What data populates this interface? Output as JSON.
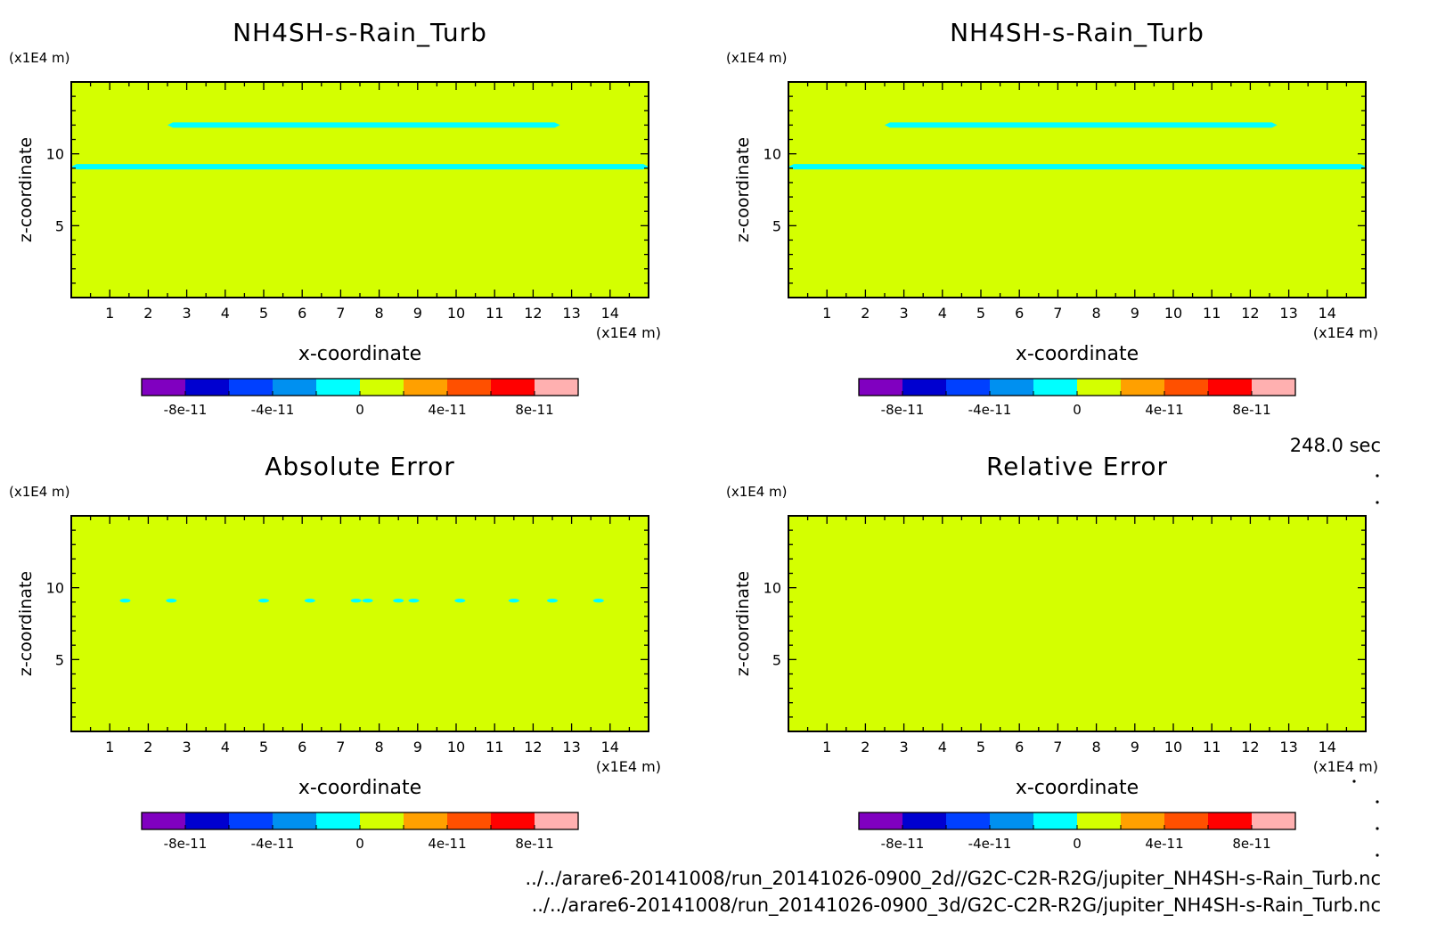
{
  "time_label": "248.0 sec",
  "files": [
    "../../arare6-20141008/run_20141026-0900_2d//G2C-C2R-R2G/jupiter_NH4SH-s-Rain_Turb.nc",
    "../../arare6-20141008/run_20141026-0900_3d/G2C-C2R-R2G/jupiter_NH4SH-s-Rain_Turb.nc"
  ],
  "colors": {
    "background_field": "#d4ff00",
    "contour_feature": "#00ffff",
    "colorbar": [
      "#8000c0",
      "#0000d0",
      "#0040ff",
      "#0090f0",
      "#00ffff",
      "#d4ff00",
      "#ffa000",
      "#ff5000",
      "#ff0000",
      "#ffb0b0"
    ]
  },
  "colorbar_ticks": [
    "-8e-11",
    "-4e-11",
    "0",
    "4e-11",
    "8e-11"
  ],
  "chart_data": [
    {
      "type": "heatmap",
      "title": "NH4SH-s-Rain_Turb",
      "xlabel": "x-coordinate",
      "ylabel": "z-coordinate",
      "x_unit": "(x1E4 m)",
      "y_unit": "(x1E4 m)",
      "xlim": [
        0,
        15
      ],
      "ylim": [
        0,
        15
      ],
      "xticks": [
        "1",
        "2",
        "3",
        "4",
        "5",
        "6",
        "7",
        "8",
        "9",
        "10",
        "11",
        "12",
        "13",
        "14"
      ],
      "yticks": [
        "5",
        "10"
      ],
      "features": [
        {
          "kind": "band",
          "x": [
            2.5,
            12.7
          ],
          "z": 12.0
        },
        {
          "kind": "band",
          "x": [
            0,
            15
          ],
          "z": 9.1
        }
      ]
    },
    {
      "type": "heatmap",
      "title": "NH4SH-s-Rain_Turb",
      "xlabel": "x-coordinate",
      "ylabel": "z-coordinate",
      "x_unit": "(x1E4 m)",
      "y_unit": "(x1E4 m)",
      "xlim": [
        0,
        15
      ],
      "ylim": [
        0,
        15
      ],
      "xticks": [
        "1",
        "2",
        "3",
        "4",
        "5",
        "6",
        "7",
        "8",
        "9",
        "10",
        "11",
        "12",
        "13",
        "14"
      ],
      "yticks": [
        "5",
        "10"
      ],
      "features": [
        {
          "kind": "band",
          "x": [
            2.5,
            12.7
          ],
          "z": 12.0
        },
        {
          "kind": "band",
          "x": [
            0,
            15
          ],
          "z": 9.1
        }
      ]
    },
    {
      "type": "heatmap",
      "title": "Absolute Error",
      "xlabel": "x-coordinate",
      "ylabel": "z-coordinate",
      "x_unit": "(x1E4 m)",
      "y_unit": "(x1E4 m)",
      "xlim": [
        0,
        15
      ],
      "ylim": [
        0,
        15
      ],
      "xticks": [
        "1",
        "2",
        "3",
        "4",
        "5",
        "6",
        "7",
        "8",
        "9",
        "10",
        "11",
        "12",
        "13",
        "14"
      ],
      "yticks": [
        "5",
        "10"
      ],
      "features": [
        {
          "kind": "spot",
          "x": 1.4,
          "z": 9.1
        },
        {
          "kind": "spot",
          "x": 2.6,
          "z": 9.1
        },
        {
          "kind": "spot",
          "x": 5.0,
          "z": 9.1
        },
        {
          "kind": "spot",
          "x": 6.2,
          "z": 9.1
        },
        {
          "kind": "spot",
          "x": 7.4,
          "z": 9.1
        },
        {
          "kind": "spot",
          "x": 7.7,
          "z": 9.1
        },
        {
          "kind": "spot",
          "x": 8.5,
          "z": 9.1
        },
        {
          "kind": "spot",
          "x": 8.9,
          "z": 9.1
        },
        {
          "kind": "spot",
          "x": 10.1,
          "z": 9.1
        },
        {
          "kind": "spot",
          "x": 11.5,
          "z": 9.1
        },
        {
          "kind": "spot",
          "x": 12.5,
          "z": 9.1
        },
        {
          "kind": "spot",
          "x": 13.7,
          "z": 9.1
        }
      ]
    },
    {
      "type": "heatmap",
      "title": "Relative Error",
      "xlabel": "x-coordinate",
      "ylabel": "z-coordinate",
      "x_unit": "(x1E4 m)",
      "y_unit": "(x1E4 m)",
      "xlim": [
        0,
        15
      ],
      "ylim": [
        0,
        15
      ],
      "xticks": [
        "1",
        "2",
        "3",
        "4",
        "5",
        "6",
        "7",
        "8",
        "9",
        "10",
        "11",
        "12",
        "13",
        "14"
      ],
      "yticks": [
        "5",
        "10"
      ],
      "features": []
    }
  ]
}
